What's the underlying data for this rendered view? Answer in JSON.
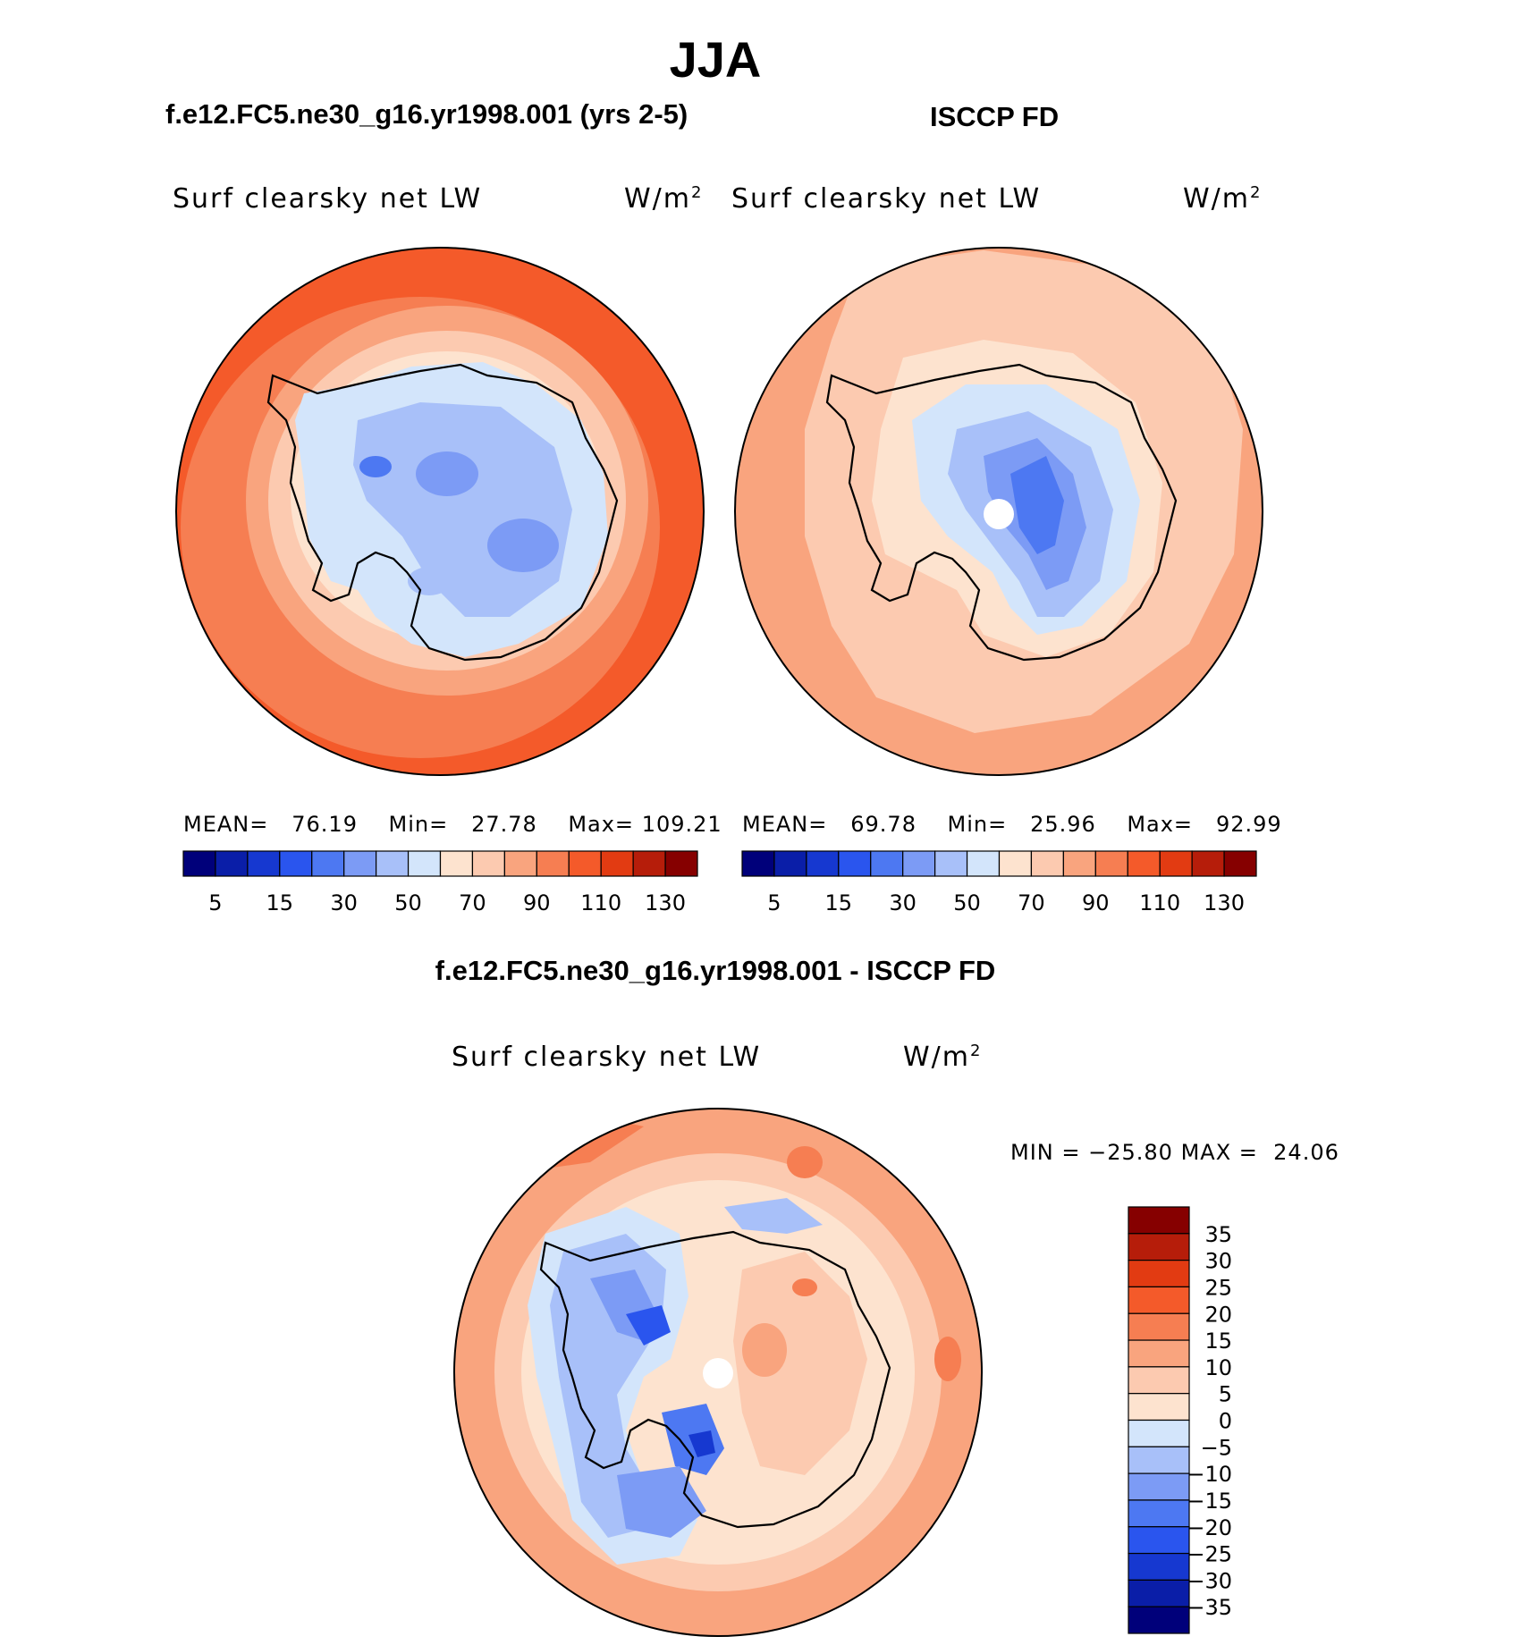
{
  "season": "JJA",
  "panels": [
    {
      "title": "f.e12.FC5.ne30_g16.yr1998.001 (yrs 2-5)",
      "variable": "Surf clearsky net LW",
      "units": "W/m",
      "units_exp": "2",
      "stats": {
        "mean_label": "MEAN=",
        "mean": "76.19",
        "min_label": "Min=",
        "min": "27.78",
        "max_label": "Max=",
        "max": "109.21"
      }
    },
    {
      "title": "ISCCP FD",
      "variable": "Surf clearsky net LW",
      "units": "W/m",
      "units_exp": "2",
      "stats": {
        "mean_label": "MEAN=",
        "mean": "69.78",
        "min_label": "Min=",
        "min": "25.96",
        "max_label": "Max=",
        "max": "92.99"
      }
    }
  ],
  "difference": {
    "title": "f.e12.FC5.ne30_g16.yr1998.001 - ISCCP FD",
    "variable": "Surf clearsky net LW",
    "units": "W/m",
    "units_exp": "2",
    "minmax": {
      "min_label": "MIN = ",
      "min": "−25.80",
      "max_label": "MAX = ",
      "max": "24.06"
    }
  },
  "colorbar_abs": {
    "colors": [
      "#00007a",
      "#0a1ea8",
      "#1638d0",
      "#2a55ee",
      "#4d78f2",
      "#7c9bf5",
      "#a8c0f9",
      "#d3e5fb",
      "#fde3cf",
      "#fccab0",
      "#f9a47e",
      "#f67e52",
      "#f45a2a",
      "#e23b12",
      "#b61d0a",
      "#860000"
    ],
    "labels": [
      "5",
      "15",
      "30",
      "50",
      "70",
      "90",
      "110",
      "130"
    ]
  },
  "colorbar_diff": {
    "colors": [
      "#860000",
      "#b61d0a",
      "#e23b12",
      "#f45a2a",
      "#f67e52",
      "#f9a47e",
      "#fccab0",
      "#fde3cf",
      "#d3e5fb",
      "#a8c0f9",
      "#7c9bf5",
      "#4d78f2",
      "#2a55ee",
      "#1638d0",
      "#0a1ea8",
      "#00007a"
    ],
    "labels": [
      "35",
      "30",
      "25",
      "20",
      "15",
      "10",
      "5",
      "0",
      "−5",
      "−10",
      "−15",
      "−20",
      "−25",
      "−30",
      "−35"
    ]
  }
}
